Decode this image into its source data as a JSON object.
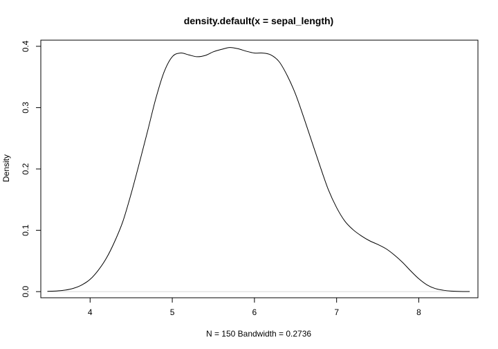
{
  "chart_data": {
    "type": "line",
    "title": "density.default(x = sepal_length)",
    "xlabel": "N = 150   Bandwidth = 0.2736",
    "ylabel": "Density",
    "xlim": [
      3.4,
      8.72
    ],
    "ylim": [
      -0.01,
      0.41
    ],
    "xticks": [
      4,
      5,
      6,
      7,
      8
    ],
    "yticks": [
      0.0,
      0.1,
      0.2,
      0.3,
      0.4
    ],
    "xtick_labels": [
      "4",
      "5",
      "6",
      "7",
      "8"
    ],
    "ytick_labels": [
      "0.0",
      "0.1",
      "0.2",
      "0.3",
      "0.4"
    ],
    "grid": false,
    "baseline": 0,
    "series": [
      {
        "x": [
          3.48,
          3.6,
          3.7,
          3.8,
          3.9,
          4.0,
          4.1,
          4.2,
          4.3,
          4.4,
          4.5,
          4.6,
          4.7,
          4.8,
          4.9,
          5.0,
          5.1,
          5.2,
          5.3,
          5.4,
          5.5,
          5.6,
          5.7,
          5.8,
          5.9,
          6.0,
          6.1,
          6.2,
          6.3,
          6.4,
          6.5,
          6.6,
          6.7,
          6.8,
          6.9,
          7.0,
          7.1,
          7.2,
          7.3,
          7.4,
          7.5,
          7.6,
          7.7,
          7.8,
          7.9,
          8.0,
          8.1,
          8.2,
          8.3,
          8.4,
          8.5,
          8.62
        ],
        "y": [
          0.0005,
          0.0012,
          0.0025,
          0.0055,
          0.011,
          0.02,
          0.035,
          0.055,
          0.082,
          0.115,
          0.16,
          0.21,
          0.262,
          0.315,
          0.358,
          0.383,
          0.389,
          0.386,
          0.383,
          0.385,
          0.391,
          0.395,
          0.398,
          0.396,
          0.392,
          0.389,
          0.389,
          0.386,
          0.375,
          0.352,
          0.322,
          0.284,
          0.244,
          0.204,
          0.166,
          0.137,
          0.115,
          0.101,
          0.091,
          0.083,
          0.077,
          0.07,
          0.06,
          0.048,
          0.034,
          0.021,
          0.011,
          0.005,
          0.0022,
          0.0009,
          0.0003,
          0.0001
        ]
      }
    ]
  }
}
